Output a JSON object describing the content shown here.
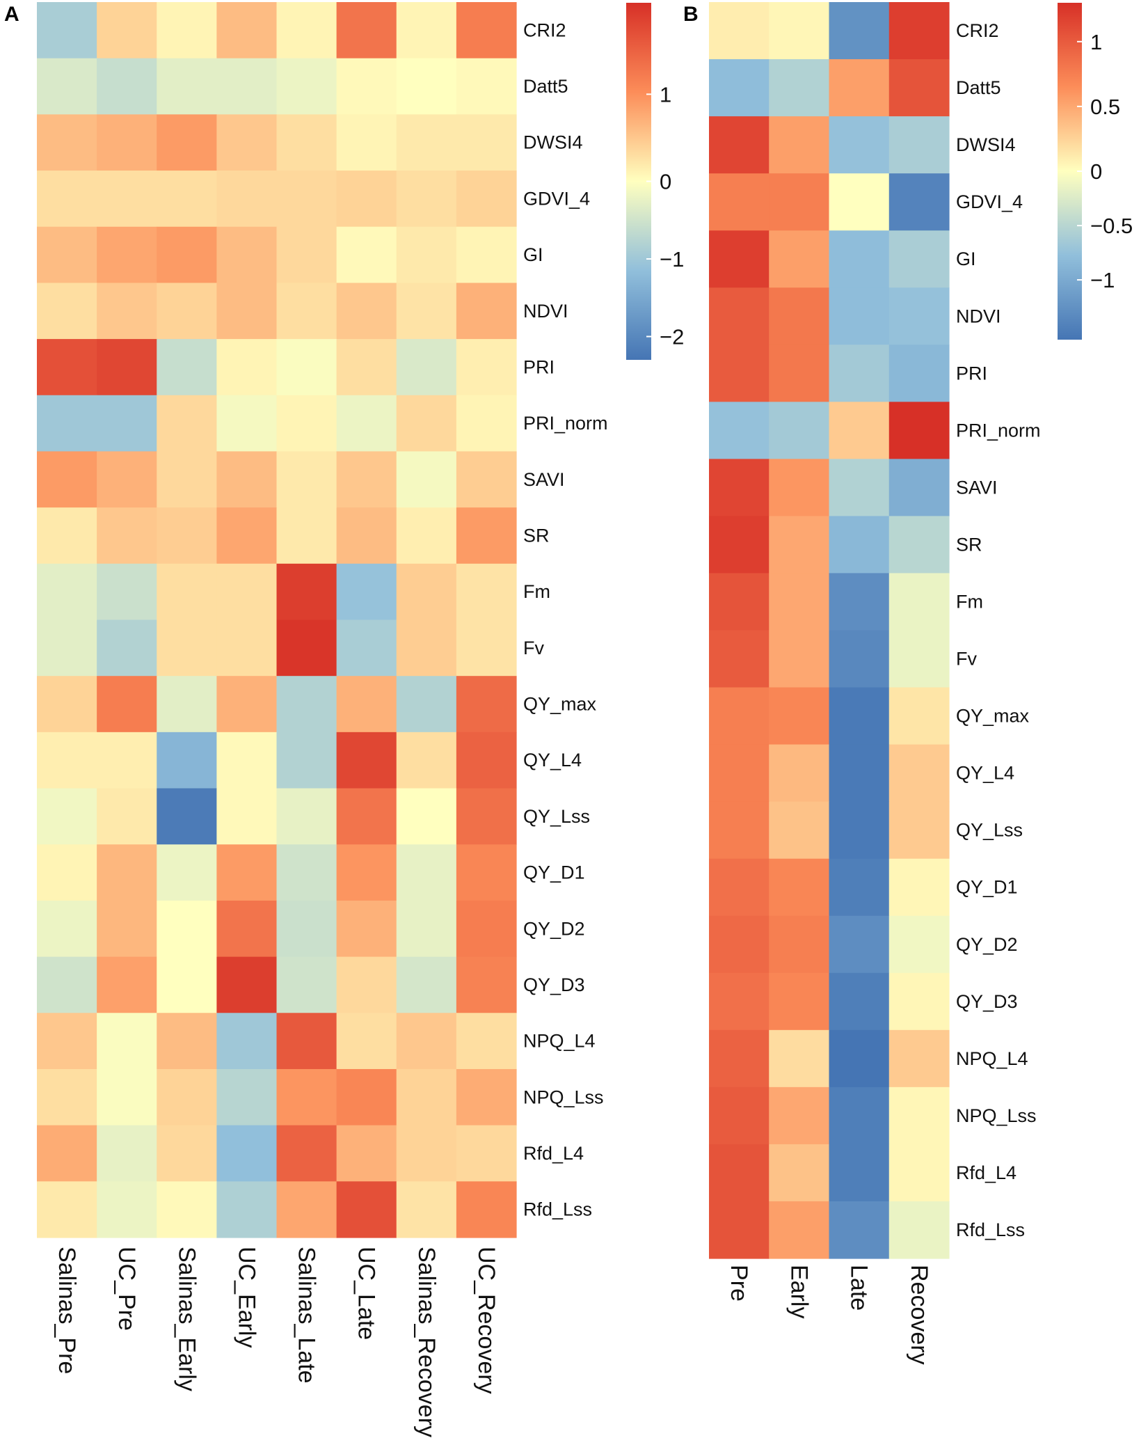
{
  "chart_data": [
    {
      "type": "heatmap",
      "panel_label": "A",
      "rows": [
        "CRI2",
        "Datt5",
        "DWSI4",
        "GDVI_4",
        "GI",
        "NDVI",
        "PRI",
        "PRI_norm",
        "SAVI",
        "SR",
        "Fm",
        "Fv",
        "QY_max",
        "QY_L4",
        "QY_Lss",
        "QY_D1",
        "QY_D2",
        "QY_D3",
        "NPQ_L4",
        "NPQ_Lss",
        "Rfd_L4",
        "Rfd_Lss"
      ],
      "columns": [
        "Salinas_Pre",
        "UC_Pre",
        "Salinas_Early",
        "UC_Early",
        "Salinas_Late",
        "UC_Late",
        "Salinas_Recovery",
        "UC_Recovery"
      ],
      "values": [
        [
          -0.9,
          0.4,
          0.1,
          0.6,
          0.1,
          1.3,
          0.1,
          1.2
        ],
        [
          -0.4,
          -0.6,
          -0.3,
          -0.3,
          -0.2,
          0.05,
          0.0,
          0.05
        ],
        [
          0.6,
          0.7,
          0.9,
          0.5,
          0.3,
          0.1,
          0.2,
          0.2
        ],
        [
          0.3,
          0.3,
          0.3,
          0.35,
          0.35,
          0.4,
          0.3,
          0.4
        ],
        [
          0.6,
          0.8,
          0.9,
          0.6,
          0.35,
          0.05,
          0.2,
          0.1
        ],
        [
          0.3,
          0.5,
          0.4,
          0.6,
          0.3,
          0.5,
          0.25,
          0.7
        ],
        [
          1.7,
          1.8,
          -0.6,
          0.1,
          -0.05,
          0.3,
          -0.4,
          0.15
        ],
        [
          -1.0,
          -1.0,
          0.35,
          -0.1,
          0.1,
          -0.2,
          0.35,
          0.1
        ],
        [
          0.9,
          0.7,
          0.35,
          0.6,
          0.2,
          0.5,
          -0.1,
          0.45
        ],
        [
          0.2,
          0.5,
          0.45,
          0.8,
          0.2,
          0.6,
          0.15,
          0.9
        ],
        [
          -0.3,
          -0.55,
          0.3,
          0.3,
          1.9,
          -1.1,
          0.45,
          0.25
        ],
        [
          -0.3,
          -0.8,
          0.3,
          0.3,
          2.0,
          -0.9,
          0.45,
          0.25
        ],
        [
          0.4,
          1.2,
          -0.3,
          0.7,
          -0.8,
          0.7,
          -0.8,
          1.4
        ],
        [
          0.15,
          0.15,
          -1.3,
          0.05,
          -0.8,
          1.8,
          0.3,
          1.5
        ],
        [
          -0.15,
          0.2,
          -2.2,
          0.05,
          -0.25,
          1.3,
          0.0,
          1.35
        ],
        [
          0.1,
          0.65,
          -0.2,
          0.9,
          -0.5,
          0.95,
          -0.25,
          1.1
        ],
        [
          -0.2,
          0.65,
          0.0,
          1.3,
          -0.55,
          0.7,
          -0.25,
          1.2
        ],
        [
          -0.5,
          0.85,
          0.0,
          1.9,
          -0.5,
          0.35,
          -0.45,
          1.15
        ],
        [
          0.5,
          -0.05,
          0.6,
          -1.0,
          1.6,
          0.3,
          0.5,
          0.3
        ],
        [
          0.3,
          -0.05,
          0.4,
          -0.75,
          0.95,
          1.1,
          0.4,
          0.75
        ],
        [
          0.75,
          -0.25,
          0.35,
          -1.15,
          1.5,
          0.7,
          0.4,
          0.35
        ],
        [
          0.2,
          -0.2,
          0.05,
          -0.85,
          0.8,
          1.7,
          0.25,
          1.1
        ]
      ],
      "color_scale": {
        "min": -2.3,
        "max": 2.05
      },
      "legend_ticks": [
        1,
        0,
        -1,
        -2
      ],
      "legend_tick_labels": [
        "1",
        "0",
        "−1",
        "−2"
      ]
    },
    {
      "type": "heatmap",
      "panel_label": "B",
      "rows": [
        "CRI2",
        "Datt5",
        "DWSI4",
        "GDVI_4",
        "GI",
        "NDVI",
        "PRI",
        "PRI_norm",
        "SAVI",
        "SR",
        "Fm",
        "Fv",
        "QY_max",
        "QY_L4",
        "QY_Lss",
        "QY_D1",
        "QY_D2",
        "QY_D3",
        "NPQ_L4",
        "NPQ_Lss",
        "Rfd_L4",
        "Rfd_Lss"
      ],
      "columns": [
        "Pre",
        "Early",
        "Late",
        "Recovery"
      ],
      "values": [
        [
          0.1,
          0.05,
          -1.25,
          1.2
        ],
        [
          -0.8,
          -0.55,
          0.55,
          1.05
        ],
        [
          1.15,
          0.55,
          -0.75,
          -0.6
        ],
        [
          0.75,
          0.75,
          0.0,
          -1.4
        ],
        [
          1.2,
          0.55,
          -0.8,
          -0.6
        ],
        [
          1.0,
          0.8,
          -0.8,
          -0.75
        ],
        [
          1.0,
          0.8,
          -0.65,
          -0.85
        ],
        [
          -0.75,
          -0.65,
          0.3,
          1.3
        ],
        [
          1.15,
          0.6,
          -0.55,
          -0.95
        ],
        [
          1.2,
          0.5,
          -0.85,
          -0.5
        ],
        [
          1.05,
          0.5,
          -1.3,
          -0.15
        ],
        [
          1.0,
          0.5,
          -1.35,
          -0.15
        ],
        [
          0.75,
          0.7,
          -1.5,
          0.15
        ],
        [
          0.75,
          0.4,
          -1.5,
          0.3
        ],
        [
          0.75,
          0.35,
          -1.5,
          0.3
        ],
        [
          0.85,
          0.7,
          -1.45,
          0.05
        ],
        [
          0.9,
          0.75,
          -1.3,
          -0.1
        ],
        [
          0.85,
          0.7,
          -1.45,
          0.05
        ],
        [
          0.95,
          0.2,
          -1.55,
          0.3
        ],
        [
          1.0,
          0.5,
          -1.45,
          0.05
        ],
        [
          1.05,
          0.35,
          -1.45,
          0.05
        ],
        [
          1.05,
          0.55,
          -1.3,
          -0.15
        ]
      ],
      "color_scale": {
        "min": -1.55,
        "max": 1.3
      },
      "legend_ticks": [
        1,
        0.5,
        0,
        -0.5,
        -1
      ],
      "legend_tick_labels": [
        "1",
        "0.5",
        "0",
        "−0.5",
        "−1"
      ]
    }
  ]
}
